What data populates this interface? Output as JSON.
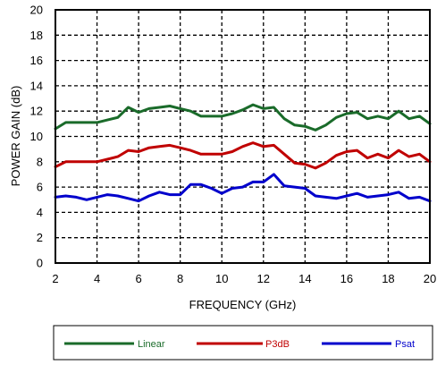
{
  "chart_data": {
    "type": "line",
    "title": "",
    "xlabel": "FREQUENCY (GHz)",
    "ylabel": "POWER GAIN (dB)",
    "xlim": [
      2,
      20
    ],
    "ylim": [
      0,
      20
    ],
    "x_ticks": [
      2,
      4,
      6,
      8,
      10,
      12,
      14,
      16,
      18,
      20
    ],
    "y_ticks": [
      0,
      2,
      4,
      6,
      8,
      10,
      12,
      14,
      16,
      18,
      20
    ],
    "grid": true,
    "legend_position": "bottom",
    "series": [
      {
        "name": "Linear",
        "color": "#1a6b2a",
        "x": [
          2,
          2.5,
          3,
          4,
          4.5,
          5,
          5.5,
          6,
          6.5,
          7,
          7.5,
          8,
          8.5,
          9,
          9.5,
          10,
          10.5,
          11,
          11.5,
          12,
          12.5,
          13,
          13.5,
          14,
          14.5,
          15,
          15.5,
          16,
          16.5,
          17,
          17.5,
          18,
          18.5,
          19,
          19.5,
          20
        ],
        "y": [
          10.6,
          11.1,
          11.1,
          11.1,
          11.3,
          11.5,
          12.3,
          11.9,
          12.2,
          12.3,
          12.4,
          12.2,
          12.0,
          11.6,
          11.6,
          11.6,
          11.8,
          12.1,
          12.5,
          12.2,
          12.3,
          11.4,
          10.9,
          10.8,
          10.5,
          10.9,
          11.5,
          11.8,
          11.9,
          11.4,
          11.6,
          11.4,
          12.0,
          11.4,
          11.6,
          11.0
        ]
      },
      {
        "name": "P3dB",
        "color": "#c00000",
        "x": [
          2,
          2.5,
          3,
          4,
          4.5,
          5,
          5.5,
          6,
          6.5,
          7,
          7.5,
          8,
          8.5,
          9,
          9.5,
          10,
          10.5,
          11,
          11.5,
          12,
          12.5,
          13,
          13.5,
          14,
          14.5,
          15,
          15.5,
          16,
          16.5,
          17,
          17.5,
          18,
          18.5,
          19,
          19.5,
          20
        ],
        "y": [
          7.6,
          8.0,
          8.0,
          8.0,
          8.2,
          8.4,
          8.9,
          8.8,
          9.1,
          9.2,
          9.3,
          9.1,
          8.9,
          8.6,
          8.6,
          8.6,
          8.8,
          9.2,
          9.5,
          9.2,
          9.3,
          8.6,
          7.9,
          7.8,
          7.5,
          7.9,
          8.5,
          8.8,
          8.9,
          8.3,
          8.6,
          8.3,
          8.9,
          8.4,
          8.6,
          8.0
        ]
      },
      {
        "name": "Psat",
        "color": "#0000cc",
        "x": [
          2,
          2.5,
          3,
          3.5,
          4,
          4.5,
          5,
          5.5,
          6,
          6.5,
          7,
          7.5,
          8,
          8.5,
          9,
          9.5,
          10,
          10.5,
          11,
          11.5,
          12,
          12.5,
          13,
          13.5,
          14,
          14.5,
          15,
          15.5,
          16,
          16.5,
          17,
          17.5,
          18,
          18.5,
          19,
          19.5,
          20
        ],
        "y": [
          5.2,
          5.3,
          5.2,
          5.0,
          5.2,
          5.4,
          5.3,
          5.1,
          4.9,
          5.3,
          5.6,
          5.4,
          5.4,
          6.2,
          6.2,
          5.9,
          5.5,
          5.9,
          6.0,
          6.4,
          6.4,
          7.0,
          6.1,
          6.0,
          5.9,
          5.3,
          5.2,
          5.1,
          5.3,
          5.5,
          5.2,
          5.3,
          5.4,
          5.6,
          5.1,
          5.2,
          4.9
        ]
      }
    ]
  }
}
